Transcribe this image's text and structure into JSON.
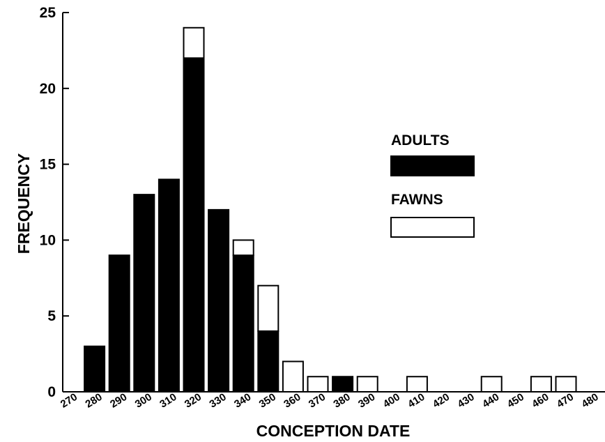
{
  "chart_data": {
    "type": "bar",
    "stacked": true,
    "xlabel": "CONCEPTION DATE",
    "ylabel": "FREQUENCY",
    "ylim": [
      0,
      25
    ],
    "yticks": [
      "0",
      "5",
      "10",
      "15",
      "20",
      "25"
    ],
    "xticks": [
      "270",
      "280",
      "290",
      "300",
      "310",
      "320",
      "330",
      "340",
      "350",
      "360",
      "370",
      "380",
      "390",
      "400",
      "410",
      "420",
      "430",
      "440",
      "450",
      "460",
      "470",
      "480"
    ],
    "grid": false,
    "legend_position": "right",
    "categories": [
      "280",
      "290",
      "300",
      "310",
      "320",
      "330",
      "340",
      "350",
      "360",
      "370",
      "380",
      "390",
      "410",
      "440",
      "460",
      "470"
    ],
    "series": [
      {
        "name": "ADULTS",
        "color": "#000000",
        "values": [
          3,
          9,
          13,
          14,
          22,
          12,
          9,
          4,
          0,
          0,
          1,
          0,
          0,
          0,
          0,
          0
        ]
      },
      {
        "name": "FAWNS",
        "color": "#ffffff",
        "values": [
          0,
          0,
          0,
          0,
          2,
          0,
          1,
          3,
          2,
          1,
          0,
          1,
          1,
          1,
          1,
          1
        ]
      }
    ]
  }
}
